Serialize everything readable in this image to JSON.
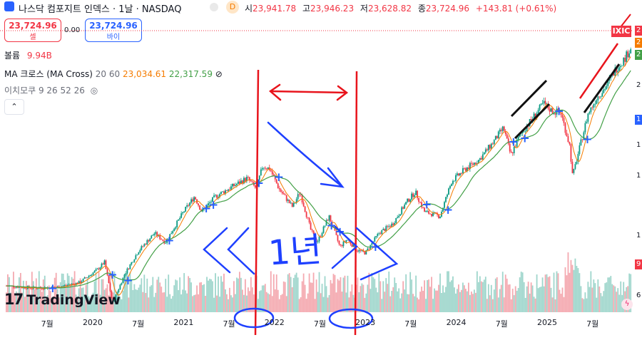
{
  "header": {
    "title": "나스닥 컴포지트 인덱스 · 1날 · NASDAQ",
    "delay_badge": "D",
    "ohlc": [
      {
        "k": "시",
        "v": "23,941.78"
      },
      {
        "k": "고",
        "v": "23,946.23"
      },
      {
        "k": "저",
        "v": "23,628.82"
      },
      {
        "k": "종",
        "v": "23,724.96"
      },
      {
        "k": "",
        "v": "+143.81 (+0.61%)"
      }
    ]
  },
  "trade": {
    "sell_price": "23,724.96",
    "sell_label": "셀",
    "spread": "0.00",
    "buy_price": "23,724.96",
    "buy_label": "바이"
  },
  "indicators": {
    "volume_label": "볼륨",
    "volume_value": "9.94B",
    "ma_label": "MA 크로스 (MA Cross)",
    "ma_params": "20 60",
    "ma_fast": "23,034.61",
    "ma_slow": "22,317.59",
    "ma_hide_icon": "⊘",
    "ichimoku_label": "이치모쿠 9 26 52 26"
  },
  "collapse_icon": "⌃",
  "logo": {
    "text": "TradingView",
    "mark": "17"
  },
  "symbol_badge": "IXIC",
  "right_axis_partial": [
    "2",
    "2",
    "2",
    "2",
    "1",
    "1",
    "1",
    "1",
    "9",
    "6"
  ],
  "annotation_text": "1년",
  "colors": {
    "up": "#089981",
    "down": "#f23645",
    "ma_fast": "#f57c00",
    "ma_slow": "#43a047",
    "pen_blue": "#1e40ff",
    "pen_red": "#e8141c",
    "accent": "#2962ff"
  },
  "chart_data": {
    "type": "candlestick",
    "title": "나스닥 컴포지트 인덱스 · 1날 · NASDAQ",
    "x_ticks": [
      "7월",
      "2020",
      "7월",
      "2021",
      "7월",
      "2022",
      "7월",
      "2023",
      "7월",
      "2024",
      "7월",
      "2025",
      "7월"
    ],
    "x_tick_dates": [
      2019.5,
      2020.0,
      2020.5,
      2021.0,
      2021.5,
      2022.0,
      2022.5,
      2023.0,
      2023.5,
      2024.0,
      2024.5,
      2025.0,
      2025.5
    ],
    "ylim": [
      6700,
      25000
    ],
    "price_path": [
      [
        2019.05,
        8150
      ],
      [
        2019.35,
        8000
      ],
      [
        2019.6,
        8050
      ],
      [
        2019.85,
        8350
      ],
      [
        2020.05,
        9200
      ],
      [
        2020.13,
        9700
      ],
      [
        2020.22,
        7000
      ],
      [
        2020.35,
        8900
      ],
      [
        2020.5,
        10400
      ],
      [
        2020.68,
        11600
      ],
      [
        2020.8,
        11000
      ],
      [
        2021.0,
        13000
      ],
      [
        2021.12,
        14000
      ],
      [
        2021.2,
        13000
      ],
      [
        2021.35,
        14000
      ],
      [
        2021.55,
        14700
      ],
      [
        2021.7,
        15200
      ],
      [
        2021.8,
        14500
      ],
      [
        2021.87,
        16000
      ],
      [
        2021.95,
        15800
      ],
      [
        2022.05,
        14500
      ],
      [
        2022.2,
        13300
      ],
      [
        2022.28,
        14300
      ],
      [
        2022.4,
        11800
      ],
      [
        2022.47,
        11000
      ],
      [
        2022.6,
        12700
      ],
      [
        2022.72,
        10700
      ],
      [
        2022.8,
        11200
      ],
      [
        2022.9,
        10500
      ],
      [
        2023.0,
        10300
      ],
      [
        2023.15,
        11600
      ],
      [
        2023.3,
        12200
      ],
      [
        2023.45,
        13600
      ],
      [
        2023.55,
        14300
      ],
      [
        2023.65,
        13000
      ],
      [
        2023.82,
        12700
      ],
      [
        2023.95,
        15000
      ],
      [
        2024.1,
        15800
      ],
      [
        2024.25,
        16400
      ],
      [
        2024.4,
        17500
      ],
      [
        2024.52,
        18500
      ],
      [
        2024.6,
        16700
      ],
      [
        2024.7,
        18000
      ],
      [
        2024.85,
        19200
      ],
      [
        2024.96,
        20100
      ],
      [
        2025.05,
        19600
      ],
      [
        2025.15,
        19500
      ],
      [
        2025.25,
        17300
      ],
      [
        2025.28,
        15300
      ],
      [
        2025.35,
        17000
      ],
      [
        2025.45,
        19400
      ],
      [
        2025.55,
        20500
      ],
      [
        2025.65,
        21200
      ],
      [
        2025.75,
        22300
      ],
      [
        2025.85,
        23000
      ],
      [
        2025.92,
        23724.96
      ]
    ],
    "series": [
      {
        "name": "MA 20",
        "last": 23034.61
      },
      {
        "name": "MA 60",
        "last": 22317.59
      }
    ],
    "last_close": 23724.96
  }
}
